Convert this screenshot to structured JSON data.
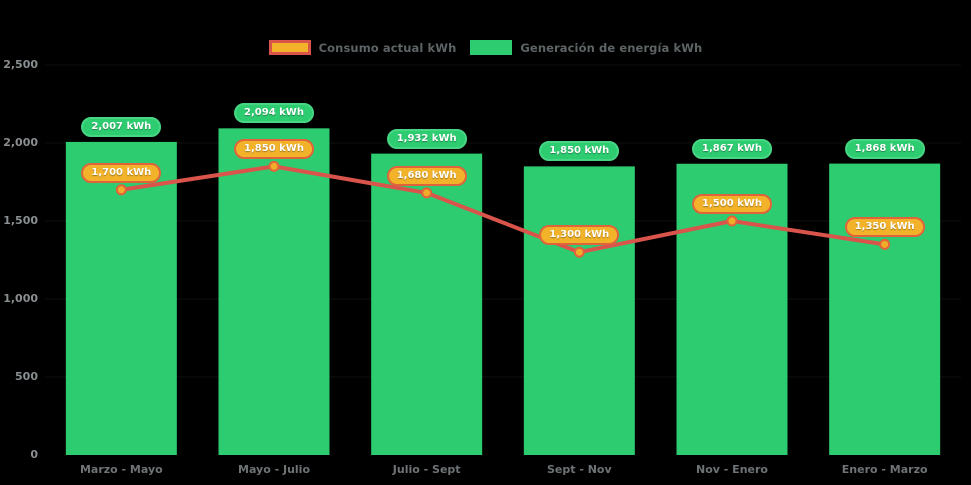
{
  "legend": {
    "consumo_label": "Consumo actual kWh",
    "generacion_label": "Generación de energía kWh"
  },
  "colors": {
    "background": "#000000",
    "bar": "#2ecc71",
    "bar_pill_bg": "#2ecc71",
    "bar_pill_border": "#47d683",
    "line": "#d9544a",
    "marker_fill": "#f0ad2a",
    "marker_stroke": "#e0633c",
    "line_pill_bg": "#f2b32a",
    "line_pill_border": "#e0633c",
    "y_axis_text": "#8a8f92",
    "x_axis_text": "#6e7376",
    "legend_text": "#5e6366"
  },
  "chart_data": {
    "type": "bar",
    "subtype": "bar-line-combo",
    "categories": [
      "Marzo - Mayo",
      "Mayo - Julio",
      "Julio - Sept",
      "Sept - Nov",
      "Nov - Enero",
      "Enero - Marzo"
    ],
    "series": [
      {
        "name": "Generación de energía kWh",
        "type": "bar",
        "values": [
          2007,
          2094,
          1932,
          1850,
          1867,
          1868
        ],
        "labels": [
          "2,007 kWh",
          "2,094 kWh",
          "1,932 kWh",
          "1,850 kWh",
          "1,867 kWh",
          "1,868 kWh"
        ],
        "color": "#2ecc71"
      },
      {
        "name": "Consumo actual kWh",
        "type": "line",
        "values": [
          1700,
          1850,
          1680,
          1300,
          1500,
          1350
        ],
        "labels": [
          "1,700 kWh",
          "1,850 kWh",
          "1,680 kWh",
          "1,300 kWh",
          "1,500 kWh",
          "1,350 kWh"
        ],
        "color": "#d9544a"
      }
    ],
    "ylim": [
      0,
      2500
    ],
    "yticks": [
      0,
      500,
      1000,
      1500,
      2000,
      2500
    ],
    "ytick_labels": [
      "0",
      "500",
      "1,000",
      "1,500",
      "2,000",
      "2,500"
    ],
    "xlabel": "",
    "ylabel": "",
    "title": "",
    "grid": false,
    "legend_position": "top",
    "legend_entries": [
      "Consumo actual kWh",
      "Generación de energía kWh"
    ]
  }
}
